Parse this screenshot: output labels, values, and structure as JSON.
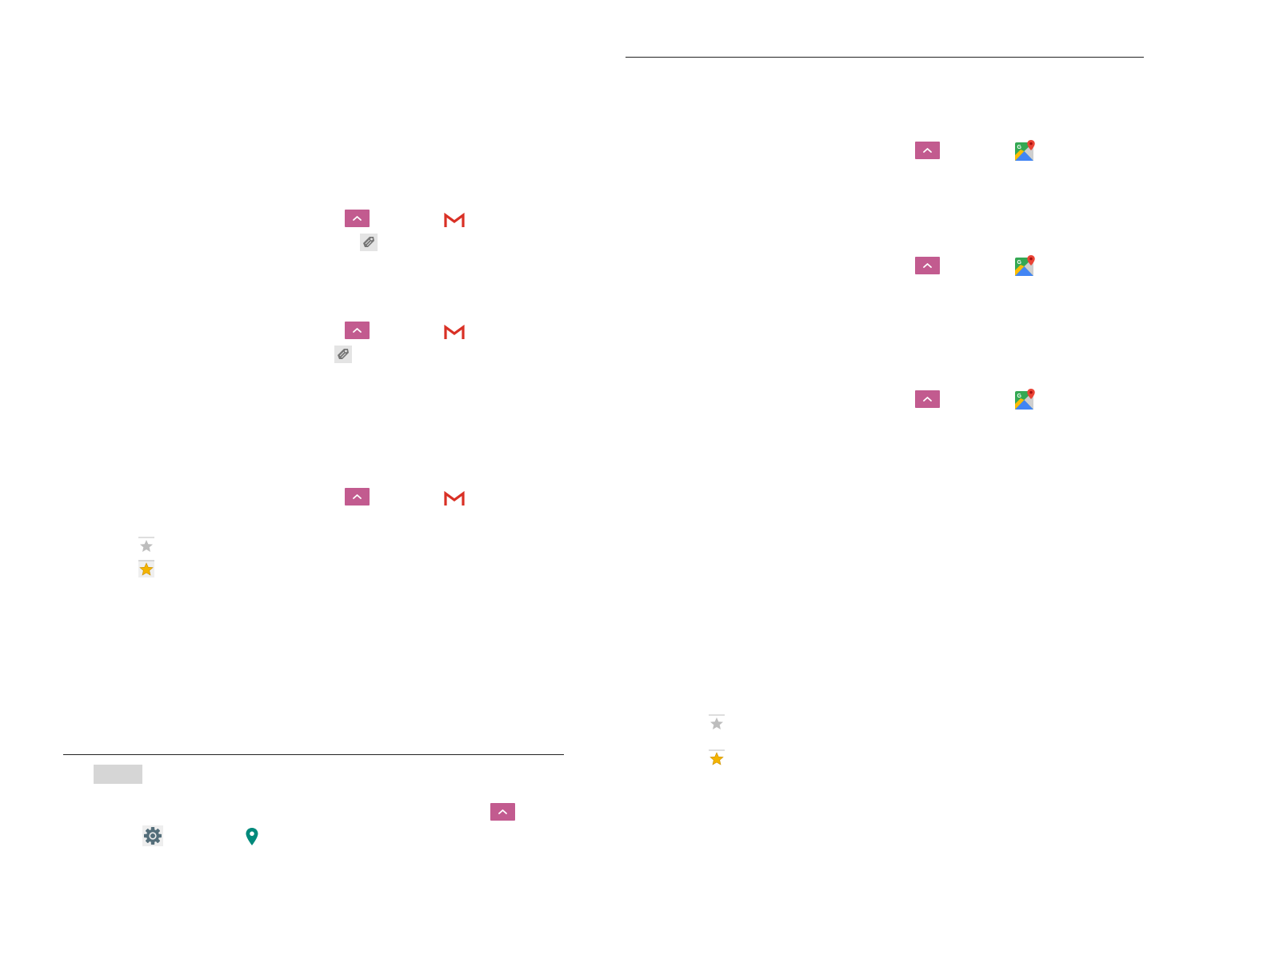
{
  "colors": {
    "up_button": "#c25b8f",
    "gmail_red": "#d93025",
    "maps_green": "#34a853",
    "maps_yellow": "#fbbc04",
    "maps_blue": "#4285f4",
    "maps_red": "#ea4335",
    "location_teal": "#00897b",
    "star_gold": "#f4b400",
    "star_gray": "#9e9e9e",
    "rule": "#222222"
  },
  "icons": {
    "up": "chevron-up-icon",
    "gmail": "gmail-icon",
    "label": "label-tag-icon",
    "maps": "google-maps-icon",
    "star_empty": "star-outline-icon",
    "star_filled": "star-filled-icon",
    "settings": "settings-gear-icon",
    "location": "location-pin-icon"
  }
}
